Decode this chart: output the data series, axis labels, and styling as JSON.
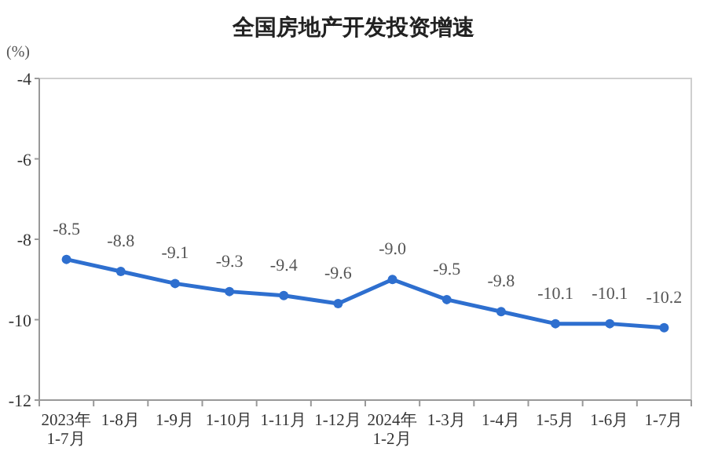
{
  "chart_data": {
    "type": "line",
    "title": "全国房地产开发投资增速",
    "ylabel": "(%)",
    "categories": [
      "2023年\n1-7月",
      "1-8月",
      "1-9月",
      "1-10月",
      "1-11月",
      "1-12月",
      "2024年\n1-2月",
      "1-3月",
      "1-4月",
      "1-5月",
      "1-6月",
      "1-7月"
    ],
    "series": [
      {
        "color": "#2e6fcf",
        "values": [
          -8.5,
          -8.8,
          -9.1,
          -9.3,
          -9.4,
          -9.6,
          -9.0,
          -9.5,
          -9.8,
          -10.1,
          -10.1,
          -10.2
        ],
        "value_labels": [
          "-8.5",
          "-8.8",
          "-9.1",
          "-9.3",
          "-9.4",
          "-9.6",
          "-9.0",
          "-9.5",
          "-9.8",
          "-10.1",
          "-10.1",
          "-10.2"
        ]
      }
    ],
    "ylim": [
      -12,
      -4
    ],
    "yticks": [
      -4,
      -6,
      -8,
      -10,
      -12
    ],
    "marker": "circle",
    "line_style": "solid"
  }
}
